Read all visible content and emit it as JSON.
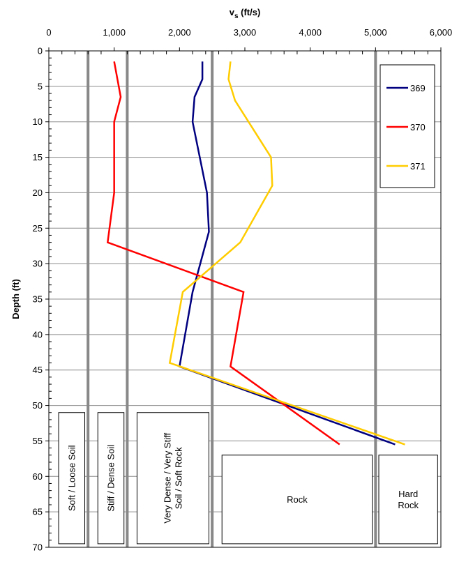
{
  "chart_data": {
    "type": "line",
    "xlabel": "v",
    "xlabel_sub": "s",
    "xlabel_unit": " (ft/s)",
    "ylabel": "Depth (ft)",
    "xlim": [
      0,
      6000
    ],
    "ylim": [
      0,
      70
    ],
    "x_axis_position": "top",
    "y_inverted": true,
    "x_ticks": [
      0,
      1000,
      2000,
      3000,
      4000,
      5000,
      6000
    ],
    "x_tick_labels": [
      "0",
      "1,000",
      "2,000",
      "3,000",
      "4,000",
      "5,000",
      "6,000"
    ],
    "y_ticks": [
      0,
      5,
      10,
      15,
      20,
      25,
      30,
      35,
      40,
      45,
      50,
      55,
      60,
      65,
      70
    ],
    "y_tick_labels": [
      "0",
      "5",
      "10",
      "15",
      "20",
      "25",
      "30",
      "35",
      "40",
      "45",
      "50",
      "55",
      "60",
      "65",
      "70"
    ],
    "grid": true,
    "legend_position": "top-right",
    "series": [
      {
        "name": "369",
        "color": "#000080",
        "points": [
          [
            2350,
            1.5
          ],
          [
            2350,
            4
          ],
          [
            2230,
            6.5
          ],
          [
            2200,
            10
          ],
          [
            2420,
            20
          ],
          [
            2450,
            25.5
          ],
          [
            2200,
            34
          ],
          [
            2000,
            44.5
          ],
          [
            5300,
            55.5
          ]
        ]
      },
      {
        "name": "370",
        "color": "#ff0000",
        "points": [
          [
            1000,
            1.5
          ],
          [
            1050,
            4
          ],
          [
            1100,
            6.5
          ],
          [
            1000,
            10
          ],
          [
            1000,
            20
          ],
          [
            900,
            27
          ],
          [
            2980,
            34
          ],
          [
            2780,
            44.5
          ],
          [
            4450,
            55.5
          ]
        ]
      },
      {
        "name": "371",
        "color": "#ffcc00",
        "points": [
          [
            2780,
            1.5
          ],
          [
            2750,
            4
          ],
          [
            2850,
            7
          ],
          [
            3400,
            15
          ],
          [
            3420,
            19
          ],
          [
            2930,
            27
          ],
          [
            2050,
            34
          ],
          [
            1850,
            44
          ],
          [
            5450,
            55.5
          ]
        ]
      }
    ],
    "zone_boundaries": [
      600,
      1200,
      2500,
      5000
    ],
    "zones": [
      {
        "label_lines": [
          "Soft / Loose Soil"
        ],
        "x_range": [
          150,
          550
        ],
        "depth_range": [
          51,
          69.5
        ]
      },
      {
        "label_lines": [
          "Stiff / Dense  Soil"
        ],
        "x_range": [
          750,
          1150
        ],
        "depth_range": [
          51,
          69.5
        ]
      },
      {
        "label_lines": [
          "Very Dense / Very Stiff",
          "Soil /  Soft Rock"
        ],
        "x_range": [
          1350,
          2450
        ],
        "depth_range": [
          51,
          69.5
        ]
      },
      {
        "label_lines": [
          "Rock"
        ],
        "x_range": [
          2650,
          4950
        ],
        "depth_range": [
          57,
          69.5
        ]
      },
      {
        "label_lines": [
          "Hard",
          "Rock"
        ],
        "x_range": [
          5050,
          5950
        ],
        "depth_range": [
          57,
          69.5
        ]
      }
    ]
  }
}
